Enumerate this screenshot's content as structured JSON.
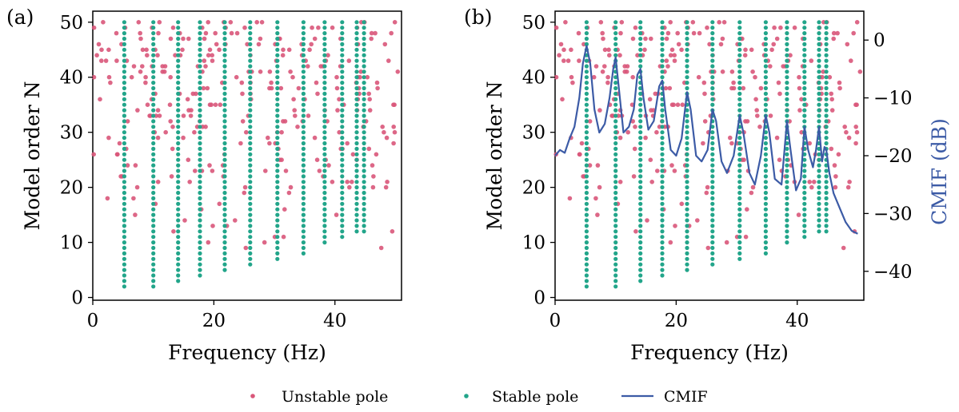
{
  "panels": [
    {
      "label": "(a)"
    },
    {
      "label": "(b)"
    }
  ],
  "legend": {
    "unstable": "Unstable pole",
    "stable": "Stable pole",
    "cmif": "CMIF"
  },
  "colors": {
    "unstable": "#d9577a",
    "stable": "#22a58a",
    "cmif": "#3c5ba6"
  },
  "chart_data": [
    {
      "type": "scatter",
      "title": "",
      "panel_label": "(a)",
      "xlabel": "Frequency (Hz)",
      "ylabel": "Model order N",
      "xlim": [
        0,
        51
      ],
      "ylim": [
        -0.5,
        52
      ],
      "xticks": [
        0,
        20,
        40
      ],
      "yticks": [
        0,
        10,
        20,
        30,
        40,
        50
      ],
      "series": [
        {
          "name": "Stable pole",
          "role": "stable",
          "columns": [
            {
              "x": 5.2,
              "n_min": 2
            },
            {
              "x": 10.0,
              "n_min": 2
            },
            {
              "x": 14.1,
              "n_min": 3
            },
            {
              "x": 17.7,
              "n_min": 4
            },
            {
              "x": 21.8,
              "n_min": 5
            },
            {
              "x": 26.0,
              "n_min": 6
            },
            {
              "x": 30.5,
              "n_min": 7
            },
            {
              "x": 34.8,
              "n_min": 8
            },
            {
              "x": 38.3,
              "n_min": 10
            },
            {
              "x": 41.2,
              "n_min": 11
            },
            {
              "x": 43.6,
              "n_min": 12
            },
            {
              "x": 44.8,
              "n_min": 12
            }
          ],
          "n_max": 50
        },
        {
          "name": "Unstable pole",
          "role": "unstable",
          "description_n_range": [
            9,
            50
          ],
          "x_range": [
            0,
            51
          ]
        }
      ]
    },
    {
      "type": "scatter",
      "title": "",
      "panel_label": "(b)",
      "xlabel": "Frequency (Hz)",
      "ylabel": "Model order N",
      "y2label": "CMIF (dB)",
      "xlim": [
        0,
        51
      ],
      "ylim": [
        -0.5,
        52
      ],
      "y2lim": [
        -45,
        5
      ],
      "xticks": [
        0,
        20,
        40
      ],
      "yticks": [
        0,
        10,
        20,
        30,
        40,
        50
      ],
      "y2ticks": [
        0,
        -10,
        -20,
        -30,
        -40
      ],
      "series": [
        {
          "name": "Stable pole",
          "role": "stable",
          "same_as_panel": "(a)"
        },
        {
          "name": "Unstable pole",
          "role": "unstable",
          "same_as_panel": "(a)"
        },
        {
          "name": "CMIF",
          "role": "cmif",
          "type": "line",
          "x": [
            0,
            0.8,
            1.6,
            2.4,
            3.2,
            4.0,
            4.6,
            5.2,
            5.8,
            6.5,
            7.3,
            8.2,
            9.0,
            9.6,
            10.0,
            10.5,
            11.3,
            12.2,
            13.0,
            13.6,
            14.1,
            14.6,
            15.4,
            16.3,
            17.2,
            17.7,
            18.2,
            19.1,
            20.0,
            20.9,
            21.8,
            22.4,
            23.3,
            24.2,
            25.2,
            26.0,
            26.6,
            27.5,
            28.4,
            29.5,
            30.5,
            31.1,
            32.1,
            33.0,
            34.0,
            34.8,
            35.4,
            36.3,
            37.4,
            38.3,
            38.9,
            39.8,
            40.6,
            41.2,
            41.8,
            42.6,
            43.1,
            43.6,
            44.1,
            44.5,
            44.8,
            45.3,
            46.0,
            47.0,
            48.0,
            49.0,
            50.0
          ],
          "y": [
            -20,
            -19,
            -19.5,
            -17,
            -15,
            -10,
            -4,
            -1,
            -4,
            -12,
            -16,
            -14.5,
            -10,
            -5,
            -3,
            -8,
            -16,
            -15,
            -12,
            -6,
            -5,
            -10,
            -15.5,
            -14,
            -8,
            -7,
            -12,
            -19,
            -20,
            -17,
            -9,
            -12,
            -20,
            -21,
            -19,
            -12,
            -14,
            -21,
            -23,
            -20,
            -13,
            -16,
            -23,
            -25,
            -20,
            -13,
            -16,
            -24,
            -25,
            -14,
            -19,
            -26,
            -24,
            -15,
            -19,
            -22,
            -19,
            -15,
            -21,
            -18.5,
            -19,
            -23,
            -26.5,
            -29,
            -31.5,
            -33,
            -33.5
          ]
        }
      ]
    }
  ]
}
